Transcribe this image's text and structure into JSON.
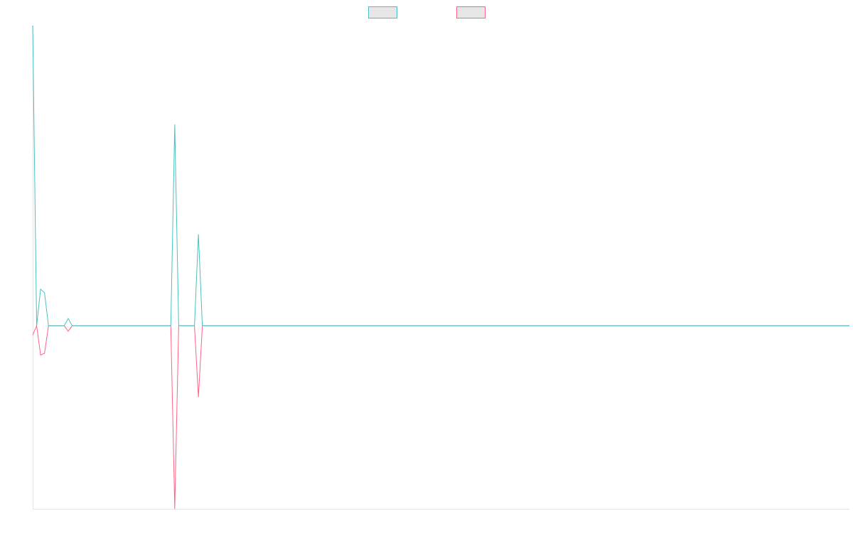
{
  "chart_data": {
    "type": "line",
    "title": "",
    "xlabel": "",
    "ylabel": "",
    "grid": false,
    "legend_placement": "top-center",
    "x": [
      0,
      1,
      2,
      3,
      4,
      5,
      6,
      7,
      8,
      9,
      10,
      11,
      12,
      13,
      14,
      15,
      16,
      17,
      18,
      19,
      20,
      21,
      22,
      23,
      24,
      25,
      26,
      27,
      28,
      29,
      30,
      31,
      32,
      33,
      34,
      35,
      36,
      37,
      38,
      39,
      40,
      41,
      42,
      43,
      44,
      45,
      46,
      47,
      48,
      49,
      50,
      51,
      52,
      53,
      54,
      55,
      56,
      57,
      58,
      59,
      60,
      61,
      62,
      63,
      64,
      65,
      66,
      67,
      68,
      69,
      70,
      71,
      72,
      73,
      74,
      75,
      76,
      77,
      78,
      79,
      80,
      81,
      82,
      83,
      84,
      85,
      86,
      87,
      88,
      89,
      90,
      91,
      92,
      93,
      94,
      95,
      96,
      97,
      98,
      99,
      100,
      101,
      102,
      103,
      104,
      105,
      106,
      107,
      108,
      109,
      110,
      111,
      112,
      113,
      114,
      115,
      116,
      117,
      118,
      119,
      120,
      121,
      122,
      123,
      124,
      125,
      126,
      127,
      128,
      129,
      130,
      131,
      132,
      133,
      134,
      135,
      136,
      137,
      138,
      139,
      140,
      141,
      142,
      143,
      144,
      145,
      146,
      147,
      148,
      149,
      150,
      151,
      152,
      153,
      154,
      155,
      156,
      157,
      158,
      159,
      160,
      161,
      162,
      163,
      164,
      165,
      166,
      167,
      168,
      169,
      170,
      171,
      172,
      173,
      174,
      175,
      176,
      177,
      178,
      179,
      180,
      181,
      182,
      183,
      184,
      185,
      186,
      187,
      188,
      189,
      190,
      191,
      192,
      193,
      194,
      195,
      196,
      197,
      198,
      199,
      200,
      201,
      202,
      203,
      204,
      205,
      206,
      207
    ],
    "xlim": [
      0,
      207
    ],
    "ylim": [
      -100,
      164
    ],
    "series": [
      {
        "name": "",
        "color": "#4bc0c0",
        "values": [
          164,
          0,
          20,
          18,
          0,
          0,
          0,
          0,
          0,
          4,
          0,
          0,
          0,
          0,
          0,
          0,
          0,
          0,
          0,
          0,
          0,
          0,
          0,
          0,
          0,
          0,
          0,
          0,
          0,
          0,
          0,
          0,
          0,
          0,
          0,
          0,
          110,
          0,
          0,
          0,
          0,
          0,
          50,
          0,
          0,
          0,
          0,
          0,
          0,
          0,
          0,
          0,
          0,
          0,
          0,
          0,
          0,
          0,
          0,
          0,
          0,
          0,
          0,
          0,
          0,
          0,
          0,
          0,
          0,
          0,
          0,
          0,
          0,
          0,
          0,
          0,
          0,
          0,
          0,
          0,
          0,
          0,
          0,
          0,
          0,
          0,
          0,
          0,
          0,
          0,
          0,
          0,
          0,
          0,
          0,
          0,
          0,
          0,
          0,
          0,
          0,
          0,
          0,
          0,
          0,
          0,
          0,
          0,
          0,
          0,
          0,
          0,
          0,
          0,
          0,
          0,
          0,
          0,
          0,
          0,
          0,
          0,
          0,
          0,
          0,
          0,
          0,
          0,
          0,
          0,
          0,
          0,
          0,
          0,
          0,
          0,
          0,
          0,
          0,
          0,
          0,
          0,
          0,
          0,
          0,
          0,
          0,
          0,
          0,
          0,
          0,
          0,
          0,
          0,
          0,
          0,
          0,
          0,
          0,
          0,
          0,
          0,
          0,
          0,
          0,
          0,
          0,
          0,
          0,
          0,
          0,
          0,
          0,
          0,
          0,
          0,
          0,
          0,
          0,
          0,
          0,
          0,
          0,
          0,
          0,
          0,
          0,
          0,
          0,
          0,
          0,
          0,
          0,
          0,
          0,
          0,
          0,
          0,
          0,
          0,
          0,
          0,
          0,
          0,
          0,
          0,
          0,
          0
        ]
      },
      {
        "name": "",
        "color": "#ff6384",
        "values": [
          -5,
          0,
          -16,
          -15,
          0,
          0,
          0,
          0,
          0,
          -3,
          0,
          0,
          0,
          0,
          0,
          0,
          0,
          0,
          0,
          0,
          0,
          0,
          0,
          0,
          0,
          0,
          0,
          0,
          0,
          0,
          0,
          0,
          0,
          0,
          0,
          0,
          -100,
          0,
          0,
          0,
          0,
          0,
          -39,
          0,
          0,
          0,
          0,
          0,
          0,
          0,
          0,
          0,
          0,
          0,
          0,
          0,
          0,
          0,
          0,
          0,
          0,
          0,
          0,
          0,
          0,
          0,
          0,
          0,
          0,
          0,
          0,
          0,
          0,
          0,
          0,
          0,
          0,
          0,
          0,
          0,
          0,
          0,
          0,
          0,
          0,
          0,
          0,
          0,
          0,
          0,
          0,
          0,
          0,
          0,
          0,
          0,
          0,
          0,
          0,
          0,
          0,
          0,
          0,
          0,
          0,
          0,
          0,
          0,
          0,
          0,
          0,
          0,
          0,
          0,
          0,
          0,
          0,
          0,
          0,
          0,
          0,
          0,
          0,
          0,
          0,
          0,
          0,
          0,
          0,
          0,
          0,
          0,
          0,
          0,
          0,
          0,
          0,
          0,
          0,
          0,
          0,
          0,
          0,
          0,
          0,
          0,
          0,
          0,
          0,
          0,
          0,
          0,
          0,
          0,
          0,
          0,
          0,
          0,
          0,
          0,
          0,
          0,
          0,
          0,
          0,
          0,
          0,
          0,
          0,
          0,
          0,
          0,
          0,
          0,
          0,
          0,
          0,
          0,
          0,
          0,
          0,
          0,
          0,
          0,
          0,
          0,
          0,
          0,
          0,
          0,
          0,
          0,
          0,
          0,
          0,
          0,
          0,
          0,
          0,
          0,
          0,
          0,
          0,
          0,
          0,
          0,
          0,
          0
        ]
      }
    ],
    "legend_fill": "#e6e6e6"
  }
}
